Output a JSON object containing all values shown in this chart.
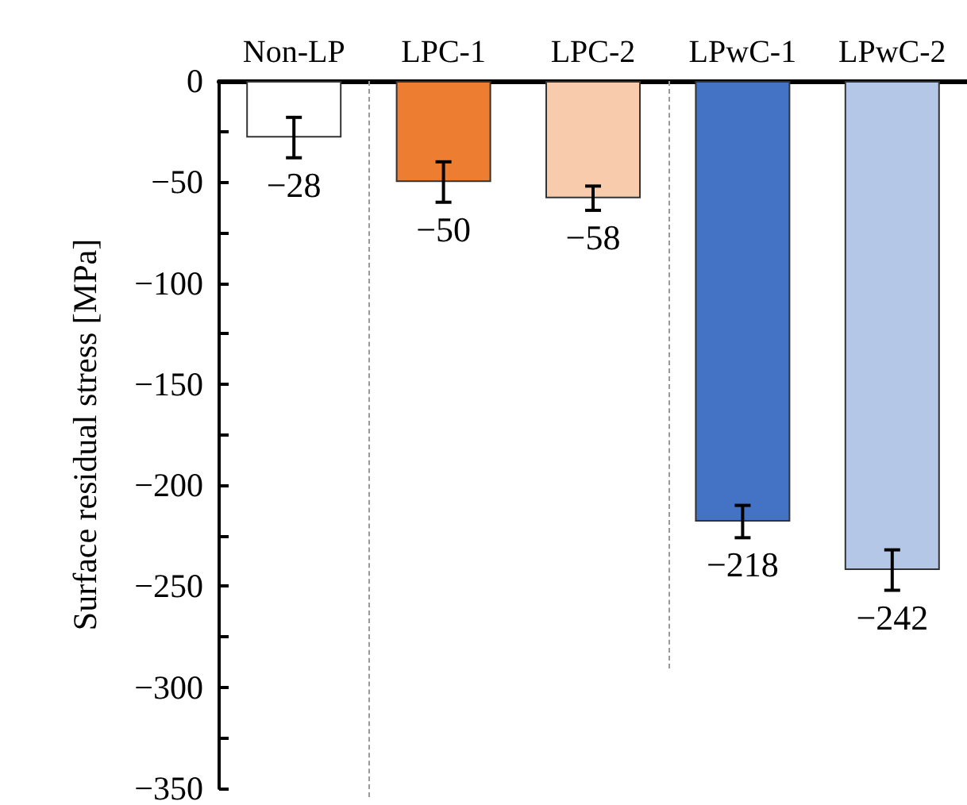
{
  "chart_data": {
    "type": "bar",
    "ylabel": "Surface residual stress [MPa]",
    "categories": [
      "Non-LP",
      "LPC-1",
      "LPC-2",
      "LPwC-1",
      "LPwC-2"
    ],
    "values": [
      -28,
      -50,
      -58,
      -218,
      -242
    ],
    "colors": [
      "#ffffff",
      "#ed7d31",
      "#f8cbad",
      "#4472c4",
      "#b4c7e7"
    ],
    "errors": [
      10,
      10,
      6,
      8,
      10
    ],
    "value_labels": [
      "−28",
      "−50",
      "−58",
      "−218",
      "−242"
    ],
    "ylim": [
      -350,
      0
    ],
    "yticks": [
      0,
      {
        "value": -25,
        "label": null
      },
      -50,
      {
        "value": -75,
        "label": null
      },
      -100,
      {
        "value": -125,
        "label": null
      },
      -150,
      {
        "value": -175,
        "label": null
      },
      -200,
      {
        "value": -225,
        "label": null
      },
      -250,
      {
        "value": -275,
        "label": null
      },
      -300,
      {
        "value": -325,
        "label": null
      },
      -350
    ],
    "grid": false
  }
}
